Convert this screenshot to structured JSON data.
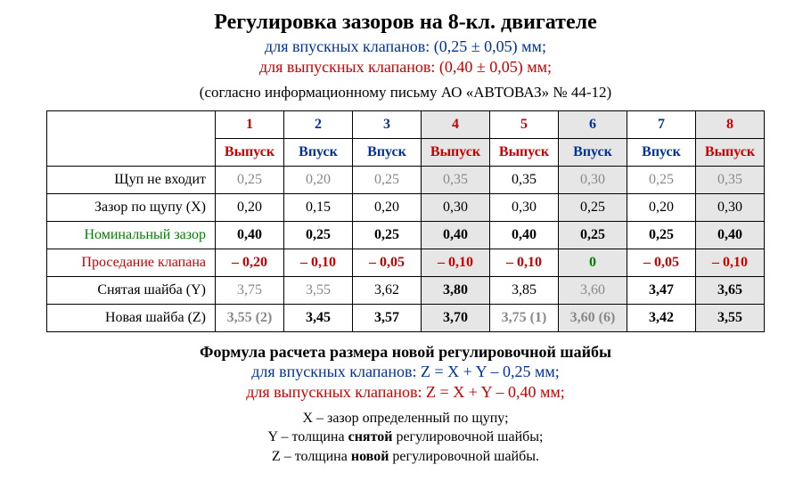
{
  "colors": {
    "red": "#cc0000",
    "blue": "#003399",
    "green": "#008000",
    "gray": "#888888",
    "shaded_bg": "#e6e6e6",
    "text": "#000000",
    "bg": "#ffffff"
  },
  "title": "Регулировка зазоров на 8-кл. двигателе",
  "subtitle_intake": "для впускных клапанов: (0,25 ± 0,05) мм;",
  "subtitle_exhaust": "для выпускных клапанов: (0,40 ± 0,05) мм;",
  "source_note": "(согласно информационному письму АО «АВТОВАЗ» № 44-12)",
  "table": {
    "col_nums": [
      "1",
      "2",
      "3",
      "4",
      "5",
      "6",
      "7",
      "8"
    ],
    "col_num_colors": [
      "red",
      "blue",
      "blue",
      "red",
      "red",
      "blue",
      "blue",
      "red"
    ],
    "col_types": [
      "Выпуск",
      "Впуск",
      "Впуск",
      "Выпуск",
      "Выпуск",
      "Впуск",
      "Впуск",
      "Выпуск"
    ],
    "col_shaded": [
      false,
      false,
      false,
      true,
      false,
      true,
      false,
      true
    ],
    "rows": [
      {
        "label": "Щуп не входит",
        "label_color": "",
        "cells": [
          {
            "text": "0,25",
            "color": "gray"
          },
          {
            "text": "0,20",
            "color": "gray"
          },
          {
            "text": "0,25",
            "color": "gray"
          },
          {
            "text": "0,35",
            "color": "gray"
          },
          {
            "text": "0,35",
            "color": ""
          },
          {
            "text": "0,30",
            "color": "gray"
          },
          {
            "text": "0,25",
            "color": "gray"
          },
          {
            "text": "0,35",
            "color": "gray"
          }
        ]
      },
      {
        "label": "Зазор по щупу (X)",
        "label_color": "",
        "cells": [
          {
            "text": "0,20"
          },
          {
            "text": "0,15"
          },
          {
            "text": "0,20"
          },
          {
            "text": "0,30"
          },
          {
            "text": "0,30"
          },
          {
            "text": "0,25"
          },
          {
            "text": "0,20"
          },
          {
            "text": "0,30"
          }
        ]
      },
      {
        "label": "Номинальный зазор",
        "label_color": "green",
        "bold": true,
        "cells": [
          {
            "text": "0,40"
          },
          {
            "text": "0,25"
          },
          {
            "text": "0,25"
          },
          {
            "text": "0,40"
          },
          {
            "text": "0,40"
          },
          {
            "text": "0,25"
          },
          {
            "text": "0,25"
          },
          {
            "text": "0,40"
          }
        ]
      },
      {
        "label": "Проседание клапана",
        "label_color": "red",
        "bold": true,
        "cells": [
          {
            "text": "– 0,20",
            "color": "red"
          },
          {
            "text": "– 0,10",
            "color": "red"
          },
          {
            "text": "– 0,05",
            "color": "red"
          },
          {
            "text": "– 0,10",
            "color": "red"
          },
          {
            "text": "– 0,10",
            "color": "red"
          },
          {
            "text": "0",
            "color": "green"
          },
          {
            "text": "– 0,05",
            "color": "red"
          },
          {
            "text": "– 0,10",
            "color": "red"
          }
        ]
      },
      {
        "label": "Снятая шайба (Y)",
        "label_color": "",
        "cells": [
          {
            "text": "3,75",
            "color": "gray"
          },
          {
            "text": "3,55",
            "color": "gray"
          },
          {
            "text": "3,62"
          },
          {
            "text": "3,80",
            "bold": true
          },
          {
            "text": "3,85"
          },
          {
            "text": "3,60",
            "color": "gray"
          },
          {
            "text": "3,47",
            "bold": true
          },
          {
            "text": "3,65",
            "bold": true
          }
        ]
      },
      {
        "label": "Новая шайба (Z)",
        "label_color": "",
        "bold": true,
        "cells": [
          {
            "text": "3,55 (2)",
            "color": "gray"
          },
          {
            "text": "3,45"
          },
          {
            "text": "3,57"
          },
          {
            "text": "3,70"
          },
          {
            "text": "3,75 (1)",
            "color": "gray"
          },
          {
            "text": "3,60 (6)",
            "color": "gray"
          },
          {
            "text": "3,42"
          },
          {
            "text": "3,55"
          }
        ]
      }
    ]
  },
  "formula_title": "Формула расчета размера новой регулировочной шайбы",
  "formula_intake": "для впускных клапанов: Z = X + Y – 0,25 мм;",
  "formula_exhaust": "для выпускных клапанов: Z = X + Y – 0,40 мм;",
  "definitions": {
    "x_pre": "X – зазор определенный по щупу;",
    "y_pre": "Y – толщина ",
    "y_bold": "снятой",
    "y_post": " регулировочной шайбы;",
    "z_pre": "Z – толщина ",
    "z_bold": "новой",
    "z_post": " регулировочной шайбы."
  }
}
